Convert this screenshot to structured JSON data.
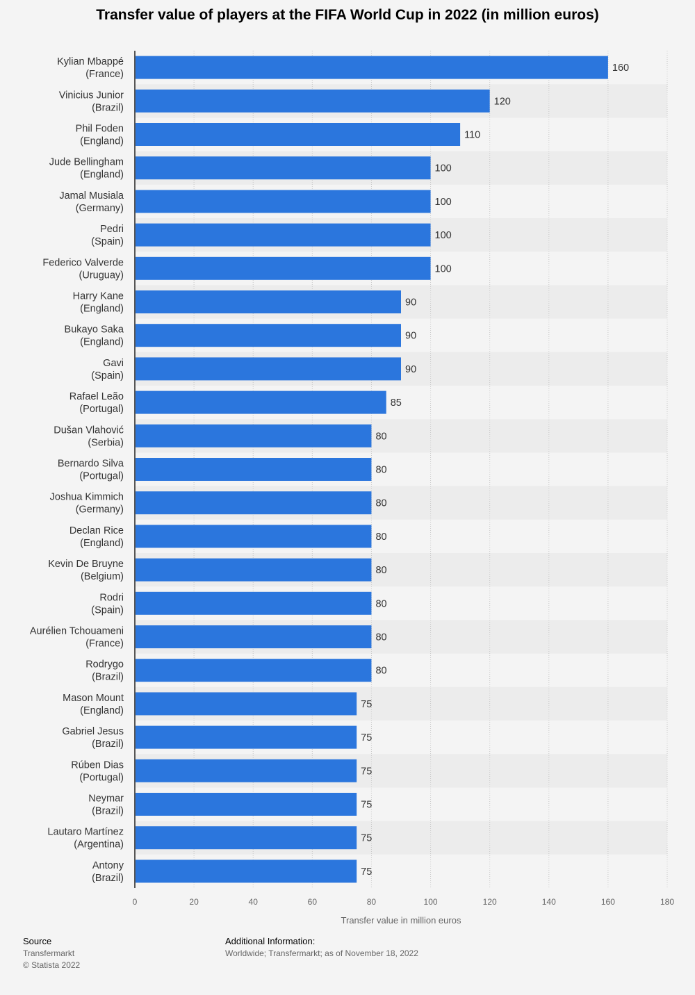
{
  "chart_data": {
    "type": "bar",
    "orientation": "horizontal",
    "title": "Transfer value of players at the FIFA World Cup in 2022 (in million euros)",
    "xlabel": "Transfer value in million euros",
    "ylabel": "",
    "xlim": [
      0,
      180
    ],
    "ticks": [
      "0",
      "20",
      "40",
      "60",
      "80",
      "100",
      "120",
      "140",
      "160",
      "180"
    ],
    "grid": true,
    "categories": [
      [
        "Kylian Mbappé",
        "(France)"
      ],
      [
        "Vinicius Junior",
        "(Brazil)"
      ],
      [
        "Phil Foden",
        "(England)"
      ],
      [
        "Jude Bellingham",
        "(England)"
      ],
      [
        "Jamal Musiala",
        "(Germany)"
      ],
      [
        "Pedri",
        "(Spain)"
      ],
      [
        "Federico Valverde",
        "(Uruguay)"
      ],
      [
        "Harry Kane",
        "(England)"
      ],
      [
        "Bukayo Saka",
        "(England)"
      ],
      [
        "Gavi",
        "(Spain)"
      ],
      [
        "Rafael Leão",
        "(Portugal)"
      ],
      [
        "Dušan Vlahović",
        "(Serbia)"
      ],
      [
        "Bernardo Silva",
        "(Portugal)"
      ],
      [
        "Joshua Kimmich",
        "(Germany)"
      ],
      [
        "Declan Rice",
        "(England)"
      ],
      [
        "Kevin De Bruyne",
        "(Belgium)"
      ],
      [
        "Rodri",
        "(Spain)"
      ],
      [
        "Aurélien Tchouameni",
        "(France)"
      ],
      [
        "Rodrygo",
        "(Brazil)"
      ],
      [
        "Mason Mount",
        "(England)"
      ],
      [
        "Gabriel Jesus",
        "(Brazil)"
      ],
      [
        "Rúben Dias",
        "(Portugal)"
      ],
      [
        "Neymar",
        "(Brazil)"
      ],
      [
        "Lautaro Martínez",
        "(Argentina)"
      ],
      [
        "Antony",
        "(Brazil)"
      ]
    ],
    "values": [
      160,
      120,
      110,
      100,
      100,
      100,
      100,
      90,
      90,
      90,
      85,
      80,
      80,
      80,
      80,
      80,
      80,
      80,
      80,
      75,
      75,
      75,
      75,
      75,
      75
    ]
  },
  "colors": {
    "bar": "#2b76dd",
    "row_alt": "#ececec",
    "row_base": "#f4f4f4"
  },
  "footer": {
    "source_title": "Source",
    "source_lines": [
      "Transfermarkt",
      "© Statista 2022"
    ],
    "info_title": "Additional Information:",
    "info_lines": [
      "Worldwide; Transfermarkt; as of November 18, 2022"
    ]
  }
}
